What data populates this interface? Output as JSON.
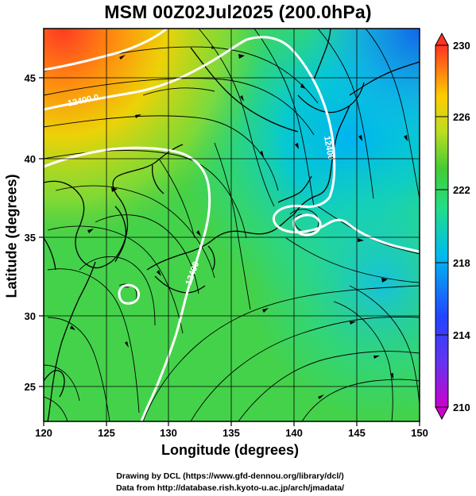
{
  "title": "MSM 00Z02Jul2025 (200.0hPa)",
  "map": {
    "lon_range": [
      120,
      150
    ],
    "lat_range": [
      23,
      48
    ],
    "grid_lon": [
      125,
      130,
      135,
      140,
      145
    ],
    "grid_lat": [
      25,
      30,
      35,
      40,
      45
    ],
    "x_ticks": [
      "120",
      "125",
      "130",
      "135",
      "140",
      "145",
      "150"
    ],
    "y_ticks": [
      "25",
      "30",
      "35",
      "40",
      "45"
    ],
    "x_label": "Longitude (degrees)",
    "y_label": "Latitude  (degrees)",
    "contour_labels": [
      "12400.0",
      "12400",
      "12400"
    ]
  },
  "colorbar": {
    "ticks": [
      "230",
      "226",
      "222",
      "218",
      "214",
      "210"
    ],
    "range": [
      210,
      230
    ],
    "colors": [
      "#cc00cc",
      "#3333ff",
      "#00aaee",
      "#22dd88",
      "#33cc33",
      "#aadd22",
      "#ffdd00",
      "#ff9900",
      "#ff3322"
    ]
  },
  "footer": {
    "line1": "Drawing by DCL (https://www.gfd-dennou.org/library/dcl/)",
    "line2": "Data from http://database.rish.kyoto-u.ac.jp/arch/jmadata/"
  }
}
